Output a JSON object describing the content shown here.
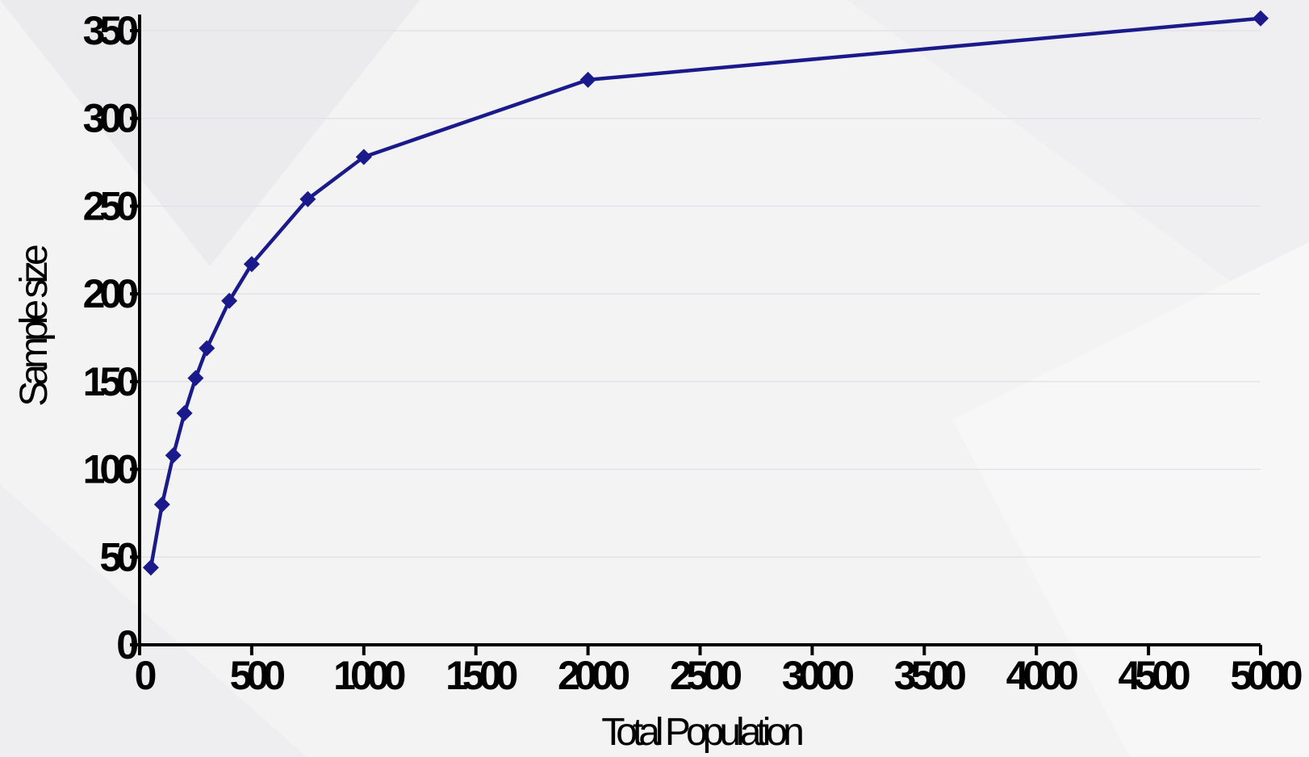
{
  "chart_data": {
    "type": "line",
    "xlabel": "Total Population",
    "ylabel": "Sample size",
    "xlim": [
      0,
      5000
    ],
    "ylim": [
      0,
      350
    ],
    "x_ticks": [
      0,
      500,
      1000,
      1500,
      2000,
      2500,
      3000,
      3500,
      4000,
      4500,
      5000
    ],
    "y_ticks": [
      0,
      50,
      100,
      150,
      200,
      250,
      300,
      350
    ],
    "grid": "horizontal",
    "legend": "none",
    "marker": "diamond",
    "colors": {
      "series": "#1a1a8c",
      "axis": "#000000"
    },
    "series": [
      {
        "x": [
          50,
          100,
          150,
          200,
          250,
          300,
          400,
          500,
          750,
          1000,
          2000,
          5000
        ],
        "y": [
          44,
          80,
          108,
          132,
          152,
          169,
          196,
          217,
          254,
          278,
          322,
          357
        ]
      }
    ]
  }
}
